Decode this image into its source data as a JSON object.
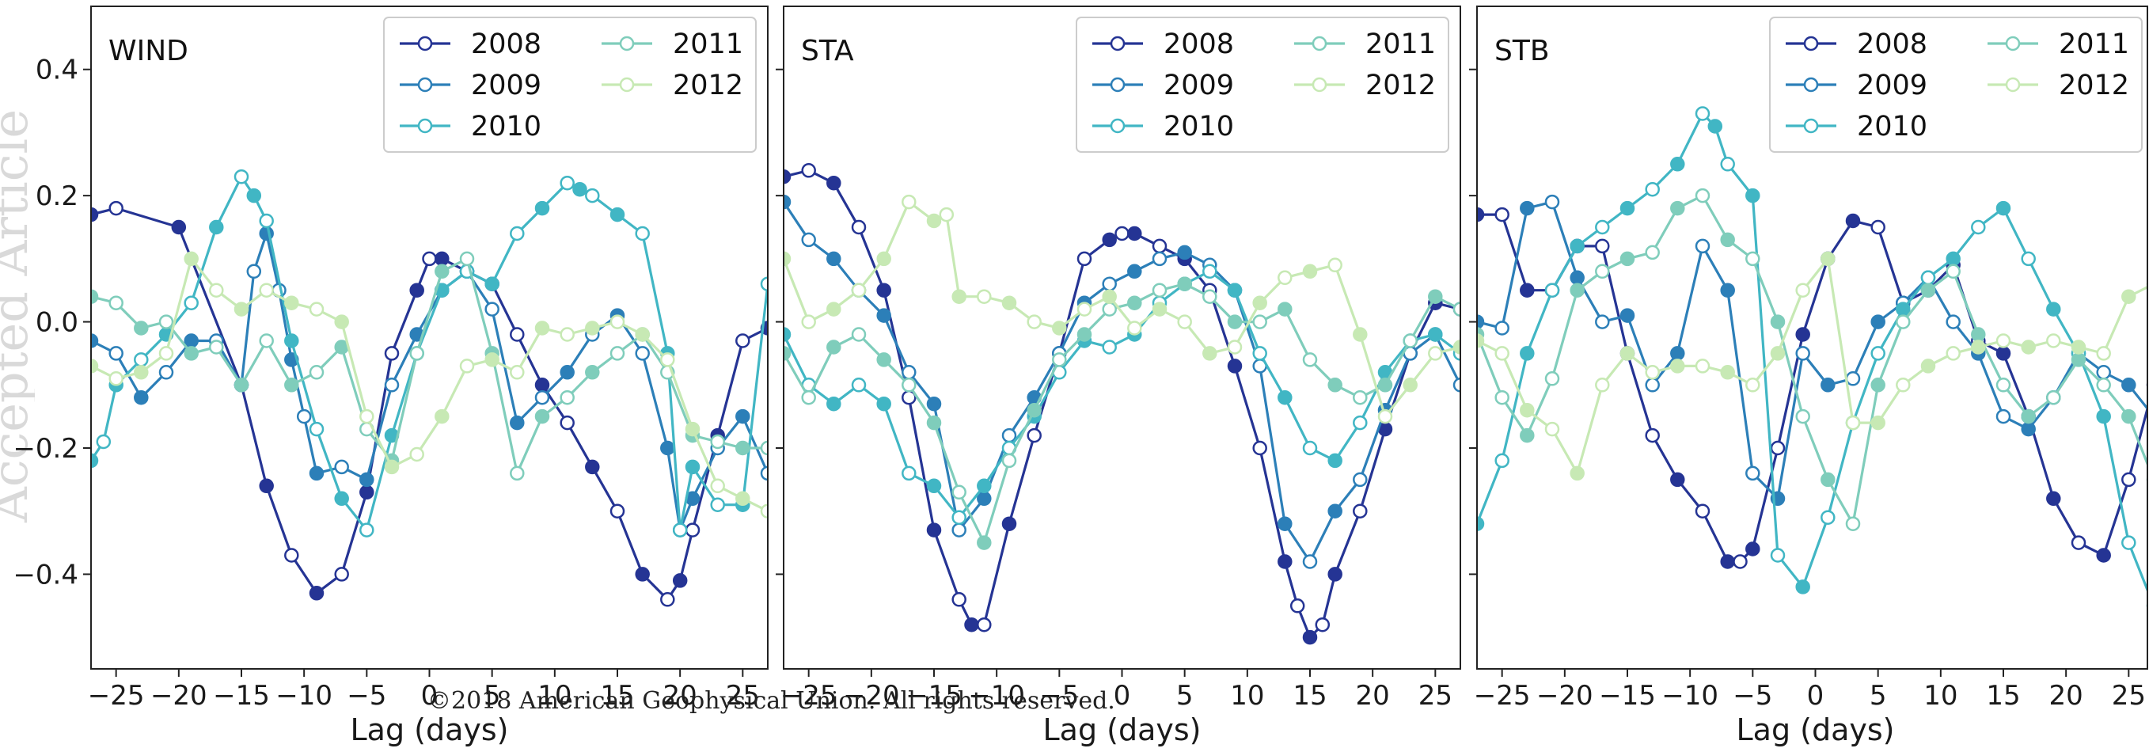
{
  "copyright": "©2018 American Geophysical Union. All rights reserved.",
  "watermark": "Accepted Article",
  "colors": {
    "2008": "#253494",
    "2009": "#2c7fb8",
    "2010": "#41b6c4",
    "2011": "#7fcdbb",
    "2012": "#c7e9b4"
  },
  "chart_data": [
    {
      "type": "line",
      "title": "WIND",
      "xlabel": "Lag (days)",
      "xlim": [
        -27,
        27
      ],
      "ylim": [
        -0.55,
        0.5
      ],
      "xticks": [
        -25,
        -20,
        -15,
        -10,
        -5,
        0,
        5,
        10,
        15,
        20,
        25
      ],
      "yticks": [
        -0.4,
        -0.2,
        0.0,
        0.2,
        0.4
      ],
      "ytick_labels": [
        "−0.4",
        "−0.2",
        "0.0",
        "0.2",
        "0.4"
      ],
      "legend_position": "top-right",
      "series": [
        {
          "name": "2008",
          "x": [
            -27,
            -25,
            -20,
            -15,
            -13,
            -11,
            -9,
            -7,
            -5,
            -3,
            -1,
            0,
            1,
            3,
            5,
            7,
            9,
            11,
            13,
            15,
            17,
            19,
            20,
            21,
            23,
            25,
            27
          ],
          "y": [
            0.17,
            0.18,
            0.15,
            -0.1,
            -0.26,
            -0.37,
            -0.43,
            -0.4,
            -0.27,
            -0.05,
            0.05,
            0.1,
            0.1,
            0.08,
            0.06,
            -0.02,
            -0.1,
            -0.16,
            -0.23,
            -0.3,
            -0.4,
            -0.44,
            -0.41,
            -0.33,
            -0.18,
            -0.03,
            -0.01
          ]
        },
        {
          "name": "2009",
          "x": [
            -27,
            -25,
            -23,
            -21,
            -19,
            -17,
            -15,
            -14,
            -13,
            -12,
            -11,
            -10,
            -9,
            -7,
            -5,
            -3,
            -1,
            1,
            3,
            5,
            7,
            9,
            11,
            13,
            15,
            17,
            19,
            20,
            21,
            23,
            25,
            27
          ],
          "y": [
            -0.03,
            -0.05,
            -0.12,
            -0.08,
            -0.03,
            -0.03,
            -0.1,
            0.08,
            0.14,
            0.05,
            -0.06,
            -0.15,
            -0.24,
            -0.23,
            -0.25,
            -0.1,
            -0.02,
            0.05,
            0.08,
            0.02,
            -0.16,
            -0.12,
            -0.08,
            -0.02,
            0.01,
            -0.05,
            -0.2,
            -0.33,
            -0.28,
            -0.2,
            -0.15,
            -0.24
          ]
        },
        {
          "name": "2010",
          "x": [
            -27,
            -26,
            -25,
            -23,
            -21,
            -19,
            -17,
            -15,
            -14,
            -13,
            -11,
            -9,
            -7,
            -5,
            -3,
            -1,
            1,
            3,
            5,
            7,
            9,
            11,
            12,
            13,
            15,
            17,
            19,
            20,
            21,
            23,
            25,
            27
          ],
          "y": [
            -0.22,
            -0.19,
            -0.1,
            -0.06,
            -0.02,
            0.03,
            0.15,
            0.23,
            0.2,
            0.16,
            -0.03,
            -0.17,
            -0.28,
            -0.33,
            -0.18,
            -0.05,
            0.05,
            0.08,
            0.06,
            0.14,
            0.18,
            0.22,
            0.21,
            0.2,
            0.17,
            0.14,
            -0.05,
            -0.33,
            -0.23,
            -0.29,
            -0.29,
            0.06
          ]
        },
        {
          "name": "2011",
          "x": [
            -27,
            -25,
            -23,
            -21,
            -19,
            -17,
            -15,
            -13,
            -11,
            -9,
            -7,
            -5,
            -3,
            -1,
            1,
            3,
            5,
            7,
            9,
            11,
            13,
            15,
            17,
            19,
            21,
            23,
            25,
            27
          ],
          "y": [
            0.04,
            0.03,
            -0.01,
            0.0,
            -0.05,
            -0.04,
            -0.1,
            -0.03,
            -0.1,
            -0.08,
            -0.04,
            -0.17,
            -0.22,
            -0.05,
            0.08,
            0.1,
            -0.05,
            -0.24,
            -0.15,
            -0.12,
            -0.08,
            -0.05,
            -0.02,
            -0.08,
            -0.18,
            -0.19,
            -0.2,
            -0.2
          ]
        },
        {
          "name": "2012",
          "x": [
            -27,
            -25,
            -23,
            -21,
            -19,
            -17,
            -15,
            -13,
            -11,
            -9,
            -7,
            -5,
            -3,
            -1,
            1,
            3,
            5,
            7,
            9,
            11,
            13,
            15,
            17,
            19,
            21,
            23,
            25,
            27
          ],
          "y": [
            -0.07,
            -0.09,
            -0.08,
            -0.05,
            0.1,
            0.05,
            0.02,
            0.05,
            0.03,
            0.02,
            0.0,
            -0.15,
            -0.23,
            -0.21,
            -0.15,
            -0.07,
            -0.06,
            -0.08,
            -0.01,
            -0.02,
            -0.01,
            0.0,
            -0.02,
            -0.06,
            -0.17,
            -0.26,
            -0.28,
            -0.3
          ]
        }
      ]
    },
    {
      "type": "line",
      "title": "STA",
      "xlabel": "Lag (days)",
      "xlim": [
        -27,
        27
      ],
      "ylim": [
        -0.55,
        0.5
      ],
      "xticks": [
        -25,
        -20,
        -15,
        -10,
        -5,
        0,
        5,
        10,
        15,
        20,
        25
      ],
      "legend_position": "top-right",
      "series": [
        {
          "name": "2008",
          "x": [
            -27,
            -25,
            -23,
            -21,
            -19,
            -17,
            -15,
            -13,
            -12,
            -11,
            -9,
            -7,
            -5,
            -3,
            -1,
            0,
            1,
            3,
            5,
            7,
            9,
            11,
            13,
            14,
            15,
            16,
            17,
            19,
            21,
            23,
            25,
            27
          ],
          "y": [
            0.23,
            0.24,
            0.22,
            0.15,
            0.05,
            -0.12,
            -0.33,
            -0.44,
            -0.48,
            -0.48,
            -0.32,
            -0.18,
            -0.05,
            0.1,
            0.13,
            0.14,
            0.14,
            0.12,
            0.1,
            0.05,
            -0.07,
            -0.2,
            -0.38,
            -0.45,
            -0.5,
            -0.48,
            -0.4,
            -0.3,
            -0.17,
            -0.05,
            0.03,
            0.02
          ]
        },
        {
          "name": "2009",
          "x": [
            -27,
            -25,
            -23,
            -21,
            -19,
            -17,
            -15,
            -13,
            -11,
            -9,
            -7,
            -5,
            -3,
            -1,
            1,
            3,
            5,
            7,
            9,
            11,
            13,
            15,
            17,
            19,
            21,
            23,
            25,
            27
          ],
          "y": [
            0.19,
            0.13,
            0.1,
            0.05,
            0.01,
            -0.08,
            -0.13,
            -0.33,
            -0.28,
            -0.18,
            -0.12,
            -0.05,
            0.03,
            0.06,
            0.08,
            0.1,
            0.11,
            0.09,
            0.05,
            -0.07,
            -0.32,
            -0.38,
            -0.3,
            -0.25,
            -0.14,
            -0.05,
            -0.02,
            -0.1
          ]
        },
        {
          "name": "2010",
          "x": [
            -27,
            -25,
            -23,
            -21,
            -19,
            -17,
            -15,
            -13,
            -11,
            -9,
            -7,
            -5,
            -3,
            -1,
            1,
            3,
            5,
            7,
            9,
            11,
            13,
            15,
            17,
            19,
            21,
            23,
            25,
            27
          ],
          "y": [
            -0.02,
            -0.1,
            -0.13,
            -0.1,
            -0.13,
            -0.24,
            -0.26,
            -0.31,
            -0.26,
            -0.2,
            -0.15,
            -0.08,
            -0.03,
            -0.04,
            -0.02,
            0.03,
            0.06,
            0.08,
            0.05,
            -0.05,
            -0.12,
            -0.2,
            -0.22,
            -0.16,
            -0.08,
            -0.03,
            -0.02,
            -0.05
          ]
        },
        {
          "name": "2011",
          "x": [
            -27,
            -25,
            -23,
            -21,
            -19,
            -17,
            -15,
            -13,
            -11,
            -9,
            -7,
            -5,
            -3,
            -1,
            1,
            3,
            5,
            7,
            9,
            11,
            13,
            15,
            17,
            19,
            21,
            23,
            25,
            27
          ],
          "y": [
            -0.05,
            -0.12,
            -0.04,
            -0.02,
            -0.06,
            -0.1,
            -0.16,
            -0.27,
            -0.35,
            -0.22,
            -0.14,
            -0.06,
            -0.02,
            0.02,
            0.03,
            0.05,
            0.06,
            0.04,
            0.0,
            0.0,
            0.02,
            -0.06,
            -0.1,
            -0.12,
            -0.1,
            -0.03,
            0.04,
            0.02
          ]
        },
        {
          "name": "2012",
          "x": [
            -27,
            -25,
            -23,
            -21,
            -19,
            -17,
            -15,
            -14,
            -13,
            -11,
            -9,
            -7,
            -5,
            -3,
            -1,
            1,
            3,
            5,
            7,
            9,
            11,
            13,
            15,
            17,
            19,
            21,
            23,
            25,
            27
          ],
          "y": [
            0.1,
            0.0,
            0.02,
            0.05,
            0.1,
            0.19,
            0.16,
            0.17,
            0.04,
            0.04,
            0.03,
            0.0,
            -0.01,
            0.02,
            0.04,
            -0.01,
            0.02,
            0.0,
            -0.05,
            -0.04,
            0.03,
            0.07,
            0.08,
            0.09,
            -0.02,
            -0.15,
            -0.1,
            -0.05,
            -0.04
          ]
        }
      ]
    },
    {
      "type": "line",
      "title": "STB",
      "xlabel": "Lag (days)",
      "xlim": [
        -27,
        27
      ],
      "ylim": [
        -0.55,
        0.5
      ],
      "xticks": [
        -25,
        -20,
        -15,
        -10,
        -5,
        0,
        5,
        10,
        15,
        20,
        25
      ],
      "legend_position": "top-right",
      "series": [
        {
          "name": "2008",
          "x": [
            -27,
            -25,
            -23,
            -21,
            -19,
            -17,
            -15,
            -13,
            -11,
            -9,
            -7,
            -6,
            -5,
            -3,
            -1,
            1,
            3,
            5,
            7,
            9,
            11,
            13,
            15,
            17,
            19,
            21,
            23,
            25,
            27
          ],
          "y": [
            0.17,
            0.17,
            0.05,
            0.05,
            0.12,
            0.12,
            -0.05,
            -0.18,
            -0.25,
            -0.3,
            -0.38,
            -0.38,
            -0.36,
            -0.2,
            -0.02,
            0.1,
            0.16,
            0.15,
            0.03,
            0.05,
            0.09,
            -0.03,
            -0.05,
            -0.15,
            -0.28,
            -0.35,
            -0.37,
            -0.25,
            -0.1
          ]
        },
        {
          "name": "2009",
          "x": [
            -27,
            -25,
            -23,
            -21,
            -19,
            -17,
            -15,
            -13,
            -11,
            -9,
            -7,
            -5,
            -3,
            -1,
            1,
            3,
            5,
            7,
            9,
            11,
            13,
            15,
            17,
            19,
            21,
            23,
            25,
            27
          ],
          "y": [
            0.0,
            -0.01,
            0.18,
            0.19,
            0.07,
            0.0,
            0.01,
            -0.1,
            -0.05,
            0.12,
            0.05,
            -0.24,
            -0.28,
            -0.05,
            -0.1,
            -0.09,
            0.0,
            0.03,
            0.07,
            0.0,
            -0.05,
            -0.15,
            -0.17,
            -0.12,
            -0.05,
            -0.08,
            -0.1,
            -0.15
          ]
        },
        {
          "name": "2010",
          "x": [
            -27,
            -25,
            -23,
            -21,
            -19,
            -17,
            -15,
            -13,
            -11,
            -9,
            -8,
            -7,
            -5,
            -3,
            -1,
            1,
            3,
            5,
            7,
            9,
            11,
            13,
            15,
            17,
            19,
            21,
            23,
            25,
            27
          ],
          "y": [
            -0.32,
            -0.22,
            -0.05,
            0.05,
            0.12,
            0.15,
            0.18,
            0.21,
            0.25,
            0.33,
            0.31,
            0.25,
            0.2,
            -0.37,
            -0.42,
            -0.31,
            -0.16,
            -0.05,
            0.02,
            0.07,
            0.1,
            0.15,
            0.18,
            0.1,
            0.02,
            -0.05,
            -0.15,
            -0.35,
            -0.45
          ]
        },
        {
          "name": "2011",
          "x": [
            -27,
            -25,
            -23,
            -21,
            -19,
            -17,
            -15,
            -13,
            -11,
            -9,
            -7,
            -5,
            -3,
            -1,
            1,
            3,
            5,
            7,
            9,
            11,
            13,
            15,
            17,
            19,
            21,
            23,
            25,
            27
          ],
          "y": [
            -0.02,
            -0.12,
            -0.18,
            -0.09,
            0.05,
            0.08,
            0.1,
            0.11,
            0.18,
            0.2,
            0.13,
            0.1,
            0.0,
            -0.15,
            -0.25,
            -0.32,
            -0.1,
            0.0,
            0.05,
            0.08,
            -0.02,
            -0.1,
            -0.15,
            -0.12,
            -0.06,
            -0.1,
            -0.15,
            -0.25
          ]
        },
        {
          "name": "2012",
          "x": [
            -27,
            -25,
            -23,
            -21,
            -19,
            -17,
            -15,
            -13,
            -11,
            -9,
            -7,
            -5,
            -3,
            -1,
            1,
            3,
            5,
            7,
            9,
            11,
            13,
            15,
            17,
            19,
            21,
            23,
            25,
            27
          ],
          "y": [
            -0.03,
            -0.05,
            -0.14,
            -0.17,
            -0.24,
            -0.1,
            -0.05,
            -0.08,
            -0.07,
            -0.07,
            -0.08,
            -0.1,
            -0.05,
            0.05,
            0.1,
            -0.16,
            -0.16,
            -0.1,
            -0.07,
            -0.05,
            -0.04,
            -0.03,
            -0.04,
            -0.03,
            -0.04,
            -0.05,
            0.04,
            0.06
          ]
        }
      ]
    }
  ]
}
